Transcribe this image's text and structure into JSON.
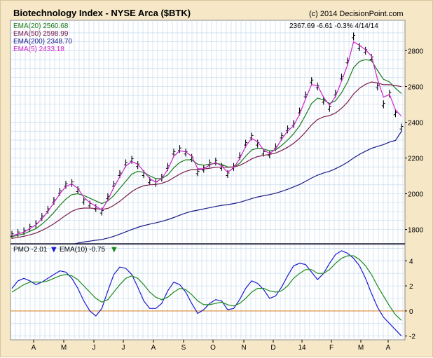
{
  "chart_data": [
    {
      "type": "line",
      "title": "Biotechnology Index - NYSE Arca ($BTK)",
      "copyright": "(c) 2014 DecisionPoint.com",
      "last_price_info": "2367.69  -6.61  -0.3%  4/14/14",
      "ylim": [
        1720,
        2970
      ],
      "y_ticks": [
        "1800",
        "2000",
        "2200",
        "2400",
        "2600",
        "2800"
      ],
      "x_ticks": [
        "A",
        "M",
        "J",
        "J",
        "A",
        "S",
        "O",
        "N",
        "D",
        "14",
        "F",
        "M",
        "A"
      ],
      "grid": true,
      "legend": [
        {
          "label": "EMA(20) 2560.68",
          "color": "#1a7a1a"
        },
        {
          "label": "EMA(50) 2598.99",
          "color": "#7a1a4a"
        },
        {
          "label": "EMA(200) 2348.70",
          "color": "#1a1a8a"
        },
        {
          "label": "EMA(5) 2433.18",
          "color": "#cc22cc"
        }
      ],
      "x": [
        0,
        9,
        18,
        27,
        36,
        45,
        54,
        63,
        72,
        81,
        90,
        99,
        108,
        117,
        126,
        135,
        144,
        153,
        162,
        171,
        180,
        189,
        198,
        207,
        216,
        225,
        234,
        243,
        252,
        261,
        270,
        279,
        288,
        297,
        306,
        315,
        324,
        333,
        342,
        351,
        360,
        369,
        378,
        387,
        396,
        405,
        414,
        423,
        432,
        441,
        450,
        459,
        468,
        477,
        486,
        495,
        504,
        513,
        522,
        531,
        540,
        549,
        558,
        567,
        576,
        585
      ],
      "series": [
        {
          "name": "Price",
          "values": [
            1770,
            1780,
            1790,
            1810,
            1830,
            1870,
            1910,
            1960,
            2010,
            2050,
            2060,
            2020,
            1960,
            1940,
            1920,
            1900,
            1980,
            2050,
            2110,
            2170,
            2190,
            2160,
            2110,
            2070,
            2060,
            2090,
            2150,
            2230,
            2250,
            2230,
            2200,
            2120,
            2140,
            2170,
            2180,
            2150,
            2110,
            2150,
            2210,
            2280,
            2320,
            2280,
            2230,
            2220,
            2260,
            2320,
            2360,
            2390,
            2460,
            2550,
            2630,
            2600,
            2520,
            2480,
            2560,
            2650,
            2740,
            2880,
            2820,
            2800,
            2760,
            2600,
            2500,
            2560,
            2450,
            2370
          ]
        },
        {
          "name": "EMA(20)",
          "values": [
            1760,
            1768,
            1776,
            1790,
            1805,
            1830,
            1860,
            1895,
            1935,
            1970,
            1995,
            2000,
            1990,
            1975,
            1960,
            1945,
            1960,
            1990,
            2030,
            2070,
            2110,
            2125,
            2120,
            2100,
            2085,
            2085,
            2105,
            2145,
            2175,
            2190,
            2190,
            2165,
            2160,
            2165,
            2170,
            2165,
            2150,
            2150,
            2170,
            2210,
            2245,
            2255,
            2250,
            2240,
            2245,
            2270,
            2300,
            2335,
            2380,
            2440,
            2505,
            2535,
            2525,
            2505,
            2520,
            2565,
            2625,
            2705,
            2740,
            2750,
            2745,
            2690,
            2640,
            2625,
            2590,
            2560
          ]
        },
        {
          "name": "EMA(50)",
          "values": [
            1750,
            1756,
            1762,
            1770,
            1780,
            1795,
            1812,
            1832,
            1855,
            1880,
            1902,
            1915,
            1920,
            1920,
            1917,
            1912,
            1918,
            1935,
            1958,
            1985,
            2012,
            2032,
            2045,
            2050,
            2052,
            2058,
            2070,
            2090,
            2110,
            2125,
            2135,
            2135,
            2138,
            2143,
            2148,
            2150,
            2148,
            2150,
            2158,
            2175,
            2195,
            2208,
            2215,
            2220,
            2228,
            2242,
            2260,
            2282,
            2310,
            2345,
            2385,
            2415,
            2430,
            2437,
            2452,
            2478,
            2512,
            2558,
            2590,
            2612,
            2625,
            2620,
            2610,
            2610,
            2605,
            2599
          ]
        },
        {
          "name": "EMA(200)",
          "values": [
            1640,
            1645,
            1650,
            1656,
            1662,
            1670,
            1678,
            1686,
            1696,
            1706,
            1716,
            1724,
            1730,
            1735,
            1740,
            1744,
            1752,
            1762,
            1774,
            1787,
            1800,
            1812,
            1822,
            1830,
            1837,
            1845,
            1855,
            1867,
            1880,
            1892,
            1902,
            1908,
            1915,
            1922,
            1929,
            1935,
            1939,
            1945,
            1952,
            1962,
            1973,
            1982,
            1989,
            1995,
            2003,
            2013,
            2025,
            2038,
            2052,
            2069,
            2088,
            2104,
            2116,
            2126,
            2140,
            2157,
            2176,
            2200,
            2220,
            2238,
            2254,
            2265,
            2275,
            2289,
            2298,
            2349
          ]
        },
        {
          "name": "EMA(5)",
          "values": [
            1765,
            1775,
            1785,
            1805,
            1825,
            1860,
            1900,
            1950,
            2000,
            2040,
            2055,
            2030,
            1980,
            1950,
            1930,
            1910,
            1965,
            2035,
            2095,
            2155,
            2180,
            2165,
            2125,
            2085,
            2065,
            2085,
            2135,
            2210,
            2240,
            2235,
            2210,
            2140,
            2140,
            2160,
            2175,
            2155,
            2120,
            2145,
            2195,
            2265,
            2310,
            2290,
            2245,
            2225,
            2250,
            2305,
            2350,
            2380,
            2445,
            2530,
            2610,
            2605,
            2540,
            2495,
            2545,
            2630,
            2720,
            2850,
            2830,
            2805,
            2770,
            2640,
            2540,
            2555,
            2470,
            2433
          ]
        }
      ]
    },
    {
      "type": "line",
      "title": "",
      "ylim": [
        -2.3,
        5.3
      ],
      "y_ticks": [
        "-2",
        "0",
        "2",
        "4"
      ],
      "reference_line": 0,
      "legend": [
        {
          "label": "PMO -2.01",
          "color": "#1a1ad0",
          "arrow": "down"
        },
        {
          "label": "EMA(10) -0.75",
          "color": "#1a8a1a",
          "arrow": "down"
        }
      ],
      "x": [
        0,
        9,
        18,
        27,
        36,
        45,
        54,
        63,
        72,
        81,
        90,
        99,
        108,
        117,
        126,
        135,
        144,
        153,
        162,
        171,
        180,
        189,
        198,
        207,
        216,
        225,
        234,
        243,
        252,
        261,
        270,
        279,
        288,
        297,
        306,
        315,
        324,
        333,
        342,
        351,
        360,
        369,
        378,
        387,
        396,
        405,
        414,
        423,
        432,
        441,
        450,
        459,
        468,
        477,
        486,
        495,
        504,
        513,
        522,
        531,
        540,
        549,
        558,
        567,
        576,
        585
      ],
      "series": [
        {
          "name": "PMO",
          "values": [
            1.8,
            2.4,
            2.6,
            2.4,
            2.1,
            2.3,
            2.6,
            2.9,
            3.2,
            3.1,
            2.6,
            1.8,
            0.8,
            0.0,
            -0.4,
            0.2,
            1.6,
            2.9,
            3.5,
            3.4,
            2.9,
            1.9,
            0.8,
            0.2,
            0.2,
            0.6,
            1.6,
            2.3,
            2.1,
            1.5,
            0.6,
            -0.2,
            0.1,
            0.6,
            0.9,
            0.8,
            0.1,
            0.2,
            0.9,
            1.8,
            2.4,
            2.2,
            1.7,
            1.0,
            1.2,
            1.9,
            2.8,
            3.6,
            3.8,
            3.7,
            3.1,
            2.5,
            3.0,
            3.8,
            4.5,
            4.8,
            4.6,
            4.2,
            3.6,
            2.6,
            1.4,
            0.3,
            -0.5,
            -1.0,
            -1.5,
            -2.0
          ]
        },
        {
          "name": "EMA(10)",
          "values": [
            1.5,
            1.8,
            2.1,
            2.3,
            2.3,
            2.3,
            2.4,
            2.6,
            2.8,
            2.9,
            2.8,
            2.5,
            2.0,
            1.5,
            1.0,
            0.7,
            0.9,
            1.5,
            2.1,
            2.6,
            2.8,
            2.6,
            2.1,
            1.5,
            1.1,
            0.9,
            1.1,
            1.5,
            1.8,
            1.7,
            1.3,
            0.8,
            0.5,
            0.5,
            0.6,
            0.7,
            0.5,
            0.4,
            0.6,
            1.0,
            1.5,
            1.8,
            1.8,
            1.6,
            1.5,
            1.6,
            2.0,
            2.6,
            3.0,
            3.3,
            3.3,
            3.0,
            3.0,
            3.3,
            3.8,
            4.2,
            4.4,
            4.4,
            4.1,
            3.6,
            2.9,
            2.0,
            1.2,
            0.4,
            -0.3,
            -0.75
          ]
        }
      ]
    }
  ]
}
